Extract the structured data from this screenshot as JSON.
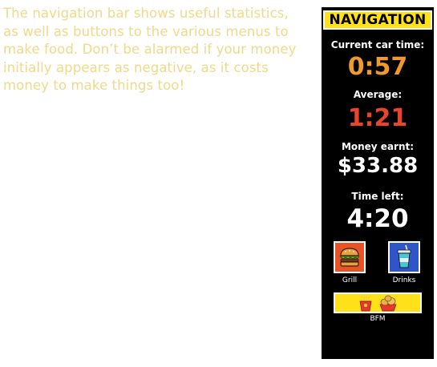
{
  "intro": {
    "text": "The navigation bar shows useful statistics, as well as buttons to the various menus to make food. Don’t be alarmed if your money initially appears as negative, as it costs money to make things too!"
  },
  "nav": {
    "title": "NAVIGATION",
    "current_car_time_label": "Current car time:",
    "current_car_time_value": "0:57",
    "average_label": "Average:",
    "average_value": "1:21",
    "money_label": "Money earnt:",
    "money_value": "$33.88",
    "time_left_label": "Time left:",
    "time_left_value": "4:20",
    "buttons": {
      "grill": "Grill",
      "drinks": "Drinks",
      "bfm": "BFM"
    }
  },
  "colors": {
    "intro_text": "#efd98a",
    "nav_bg": "#000000",
    "title_bg": "#ffe11a",
    "current_time": "#f09a2c",
    "average": "#e8452a",
    "grill_bg": "#e8542a",
    "drinks_bg": "#2f56c8",
    "bfm_bg": "#ffe11a"
  },
  "icons": {
    "grill": "burger-icon",
    "drinks": "soda-cup-icon",
    "bfm_left": "fries-icon",
    "bfm_right": "nuggets-icon"
  }
}
